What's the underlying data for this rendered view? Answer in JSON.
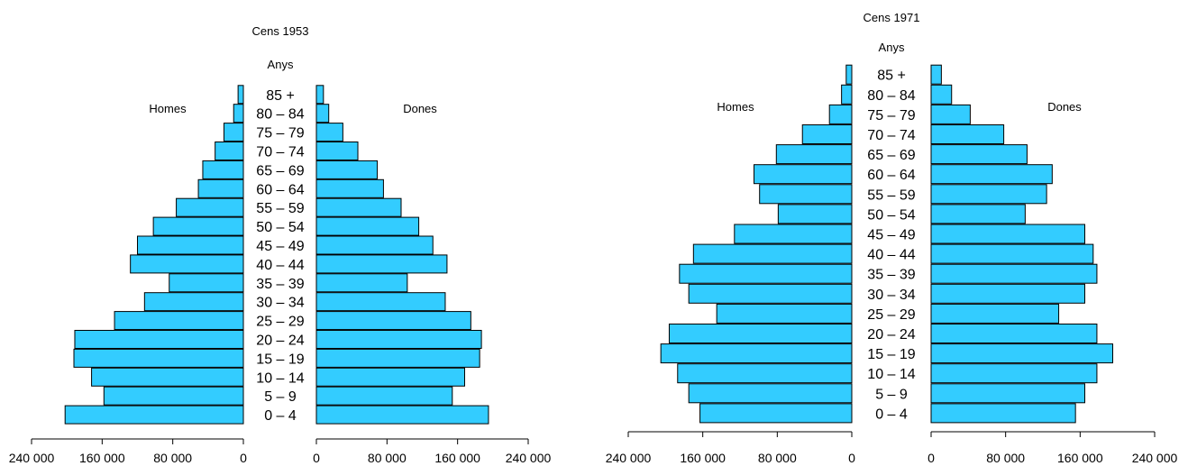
{
  "chart_data": [
    {
      "type": "bar",
      "title": "Cens 1953",
      "subtitle": "Anys",
      "left_label": "Homes",
      "right_label": "Dones",
      "bar_color": "#33CCFF",
      "categories": [
        "0 – 4",
        "5 – 9",
        "10 – 14",
        "15 – 19",
        "20 – 24",
        "25 – 29",
        "30 – 34",
        "35 – 39",
        "40 – 44",
        "45 – 49",
        "50 – 54",
        "55 – 59",
        "60 – 64",
        "65 – 69",
        "70 – 74",
        "75 – 79",
        "80 – 84",
        "85 +"
      ],
      "series": [
        {
          "name": "Homes",
          "values": [
            202000,
            158000,
            172000,
            192000,
            191000,
            146000,
            112000,
            84000,
            128000,
            120000,
            102000,
            76000,
            51000,
            46000,
            32000,
            22000,
            11000,
            6000
          ]
        },
        {
          "name": "Dones",
          "values": [
            195000,
            154000,
            168000,
            185000,
            187000,
            175000,
            146000,
            103000,
            148000,
            132000,
            116000,
            96000,
            76000,
            69000,
            47000,
            30000,
            14000,
            8000
          ]
        }
      ],
      "xlim": [
        0,
        240000
      ],
      "tick_values": [
        0,
        80000,
        160000,
        240000
      ],
      "tick_labels_left": [
        "0",
        "80 000",
        "160 000",
        "240 000"
      ],
      "tick_labels_right": [
        "0",
        "80 000",
        "160 000",
        "240 000"
      ]
    },
    {
      "type": "bar",
      "title": "Cens 1971",
      "subtitle": "Anys",
      "left_label": "Homes",
      "right_label": "Dones",
      "bar_color": "#33CCFF",
      "categories": [
        "0 – 4",
        "5 – 9",
        "10 – 14",
        "15 – 19",
        "20 – 24",
        "25 – 29",
        "30 – 34",
        "35 – 39",
        "40 – 44",
        "45 – 49",
        "50 – 54",
        "55 – 59",
        "60 – 64",
        "65 – 69",
        "70 – 74",
        "75 – 79",
        "80 – 84",
        "85 +"
      ],
      "series": [
        {
          "name": "Homes",
          "values": [
            163000,
            175000,
            187000,
            205000,
            196000,
            145000,
            175000,
            185000,
            170000,
            126000,
            79000,
            99000,
            105000,
            81000,
            53000,
            24000,
            11000,
            6000
          ]
        },
        {
          "name": "Dones",
          "values": [
            155000,
            165000,
            178000,
            195000,
            178000,
            137000,
            165000,
            178000,
            174000,
            165000,
            101000,
            124000,
            130000,
            103000,
            78000,
            42000,
            22000,
            11000
          ]
        }
      ],
      "xlim": [
        0,
        240000
      ],
      "tick_values": [
        0,
        80000,
        160000,
        240000
      ],
      "tick_labels_left": [
        "0",
        "80 000",
        "160 000",
        "240 000"
      ],
      "tick_labels_right": [
        "0",
        "80 000",
        "160 000",
        "240 000"
      ]
    }
  ]
}
